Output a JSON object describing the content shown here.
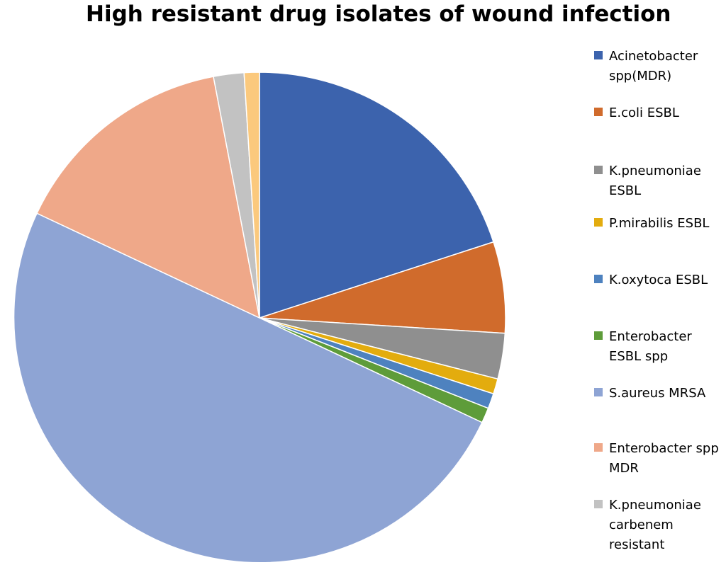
{
  "chart_data": {
    "type": "pie",
    "title": "High resistant drug isolates of wound infection",
    "legend_position": "right",
    "start_angle_deg": 0,
    "direction": "clockwise",
    "slices": [
      {
        "label": "Acinetobacter\nspp(MDR)",
        "value": 20,
        "color": "#3C63AD"
      },
      {
        "label": "E.coli ESBL",
        "value": 6,
        "color": "#D06B2C"
      },
      {
        "label": "K.pneumoniae\nESBL",
        "value": 3,
        "color": "#8F8F8F"
      },
      {
        "label": "P.mirabilis ESBL",
        "value": 1,
        "color": "#E3AC0E"
      },
      {
        "label": "K.oxytoca ESBL",
        "value": 1,
        "color": "#4E82BF"
      },
      {
        "label": "Enterobacter\nESBL spp",
        "value": 1,
        "color": "#5E9C3A"
      },
      {
        "label": "S.aureus MRSA",
        "value": 50,
        "color": "#8EA4D4"
      },
      {
        "label": "Enterobacter spp\nMDR",
        "value": 15,
        "color": "#EFA889"
      },
      {
        "label": "K.pneumoniae\ncarbenem\nresistant",
        "value": 2,
        "color": "#C2C2C2"
      },
      {
        "label": "",
        "value": 1,
        "color": "#FBC97D"
      }
    ]
  }
}
